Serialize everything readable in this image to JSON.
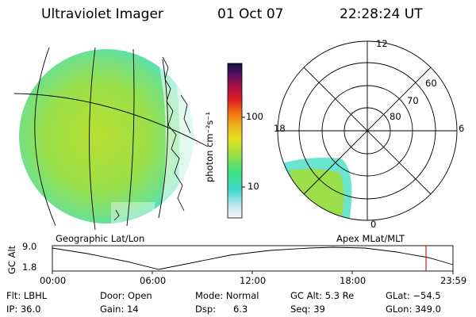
{
  "header": {
    "title": "Ultraviolet Imager",
    "date": "01 Oct 07",
    "time": "22:28:24 UT"
  },
  "colorbar": {
    "unit_label": "photon cm⁻²s⁻¹",
    "ticks": [
      "100",
      "10"
    ]
  },
  "polar_plot": {
    "mlt_labels": {
      "top": "12",
      "left": "18",
      "right": "6",
      "bottom": "0"
    },
    "lat_labels": [
      "60",
      "70",
      "80"
    ]
  },
  "panel_labels": {
    "left": "Geographic Lat/Lon",
    "right": "Apex MLat/MLT"
  },
  "altitude_plot": {
    "ylabel": "GC Alt",
    "yticks": [
      "9.0",
      "1.8"
    ],
    "xticks": [
      "00:00",
      "06:00",
      "12:00",
      "18:00",
      "23:59"
    ]
  },
  "info": {
    "flt": "Flt: LBHL",
    "ip": "IP: 36.0",
    "door": "Door: Open",
    "gain": "Gain: 14",
    "mode": "Mode: Normal",
    "dsp": "Dsp:      6.3",
    "gcalt": "GC Alt: 5.3 Re",
    "seq": "Seq: 39",
    "glat": "GLat: −54.5",
    "glon": "GLon: 349.0"
  },
  "colors": {
    "disk_main": "#9be04a",
    "disk_edge": "#4fe0c8",
    "marker": "#c82020"
  }
}
